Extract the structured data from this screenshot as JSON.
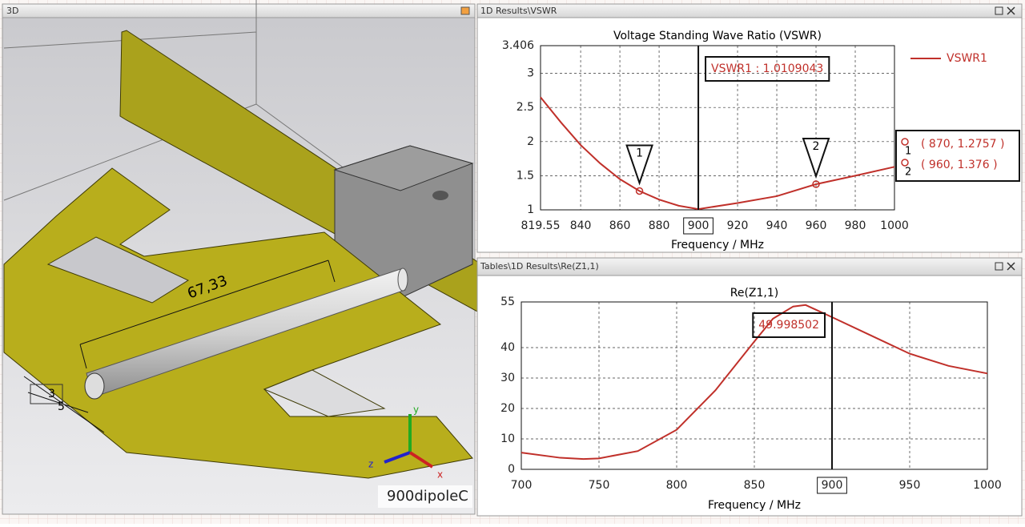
{
  "windows": {
    "left_title": "3D",
    "top_right_title": "1D Results\\VSWR",
    "bottom_right_title": "Tables\\1D Results\\Re(Z1,1)"
  },
  "viewport_3d": {
    "dimension_label": "67,33",
    "small_labels": [
      "3",
      "5"
    ],
    "model_name": "900dipoleC",
    "axes": [
      "x",
      "y",
      "z"
    ]
  },
  "chart_data": [
    {
      "type": "line",
      "title": "Voltage Standing Wave Ratio (VSWR)",
      "x_label": "Frequency / MHz",
      "x": [
        819.55,
        830,
        840,
        850,
        860,
        870,
        880,
        890,
        900,
        920,
        940,
        960,
        980,
        1000
      ],
      "series": [
        {
          "name": "VSWR1",
          "color": "#c0302a",
          "values": [
            2.65,
            2.28,
            1.95,
            1.68,
            1.45,
            1.2757,
            1.15,
            1.06,
            1.0109,
            1.1,
            1.2,
            1.376,
            1.5,
            1.63
          ]
        }
      ],
      "xlim": [
        819.55,
        1000
      ],
      "ylim": [
        1,
        3.406
      ],
      "xticks": [
        819.55,
        840,
        860,
        880,
        900,
        920,
        940,
        960,
        980,
        1000
      ],
      "yticks": [
        1,
        1.5,
        2,
        2.5,
        3,
        3.406
      ],
      "grid": true,
      "legend": "upper right",
      "cursor_x": 900,
      "cursor_label": "VSWR1 : 1.0109043",
      "markers": [
        {
          "label": "1",
          "x": 870,
          "y": 1.2757,
          "text": "( 870, 1.2757 )"
        },
        {
          "label": "2",
          "x": 960,
          "y": 1.376,
          "text": "( 960, 1.376 )"
        }
      ]
    },
    {
      "type": "line",
      "title": "Re(Z1,1)",
      "x_label": "Frequency / MHz",
      "x": [
        700,
        725,
        740,
        750,
        775,
        800,
        825,
        850,
        862,
        875,
        883,
        900,
        925,
        950,
        975,
        1000
      ],
      "series": [
        {
          "color": "#c0302a",
          "values": [
            5.5,
            3.8,
            3.4,
            3.6,
            6,
            13,
            26,
            42,
            49.5,
            53.5,
            54,
            50,
            44,
            38,
            34,
            31.5
          ]
        }
      ],
      "xlim": [
        700,
        1000
      ],
      "ylim": [
        0,
        55
      ],
      "xticks": [
        700,
        750,
        800,
        850,
        900,
        950,
        1000
      ],
      "yticks": [
        0,
        10,
        20,
        30,
        40,
        55
      ],
      "grid": true,
      "cursor_x": 900,
      "cursor_label": "49.998502"
    }
  ]
}
